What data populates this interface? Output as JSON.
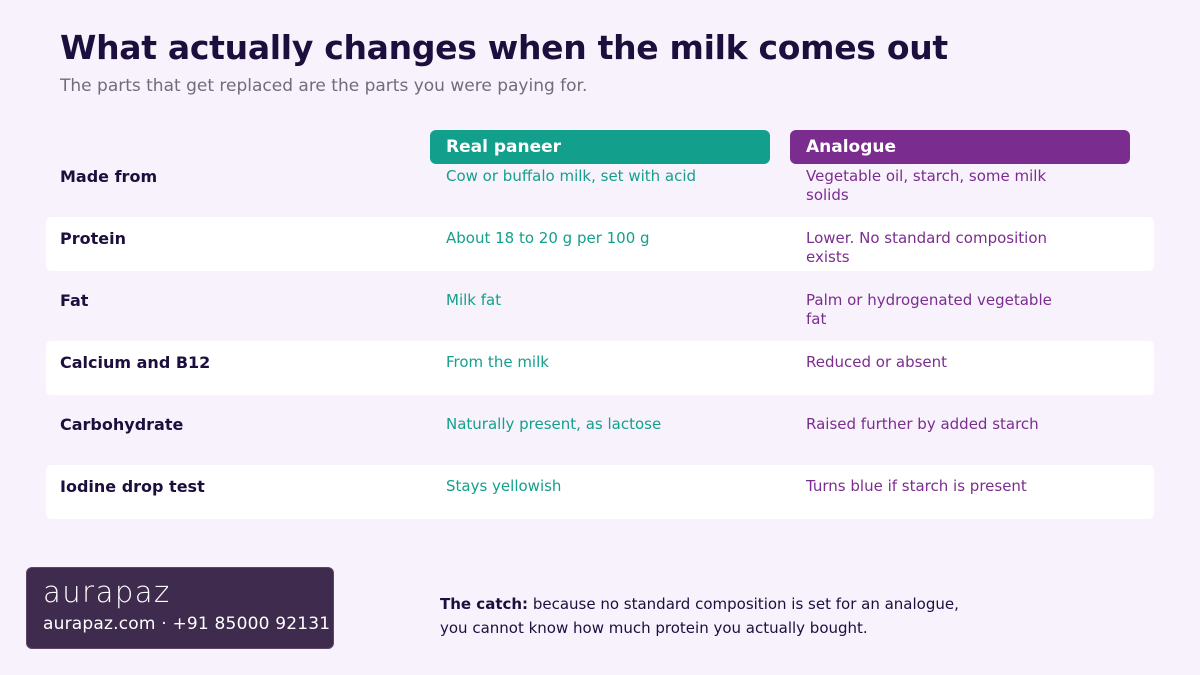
{
  "title": "What actually changes when the milk comes out",
  "subtitle": "The parts that get replaced are the parts you were paying for.",
  "columns": {
    "real": "Real paneer",
    "analogue": "Analogue"
  },
  "rows": [
    {
      "label": "Made from",
      "real": "Cow or buffalo milk, set with acid",
      "analogue": "Vegetable oil, starch, some milk solids"
    },
    {
      "label": "Protein",
      "real": "About 18 to 20 g per 100 g",
      "analogue": "Lower. No standard composition exists"
    },
    {
      "label": "Fat",
      "real": "Milk fat",
      "analogue": "Palm or hydrogenated vegetable fat"
    },
    {
      "label": "Calcium and B12",
      "real": "From the milk",
      "analogue": "Reduced or absent"
    },
    {
      "label": "Carbohydrate",
      "real": "Naturally present, as lactose",
      "analogue": "Raised further by added starch"
    },
    {
      "label": "Iodine drop test",
      "real": "Stays yellowish",
      "analogue": "Turns blue if starch is present"
    }
  ],
  "brand": {
    "logo": "aurapaz",
    "contact": "aurapaz.com · +91 85000 92131"
  },
  "catch": {
    "lead": "The catch:",
    "text": " because no standard composition is set for an analogue, you cannot know how much protein you actually bought."
  },
  "colors": {
    "background": "#f8f2fd",
    "title": "#1c0f3d",
    "real_accent": "#12a08d",
    "analogue_accent": "#7b2d8f",
    "brand_panel": "#3f2b4d"
  }
}
